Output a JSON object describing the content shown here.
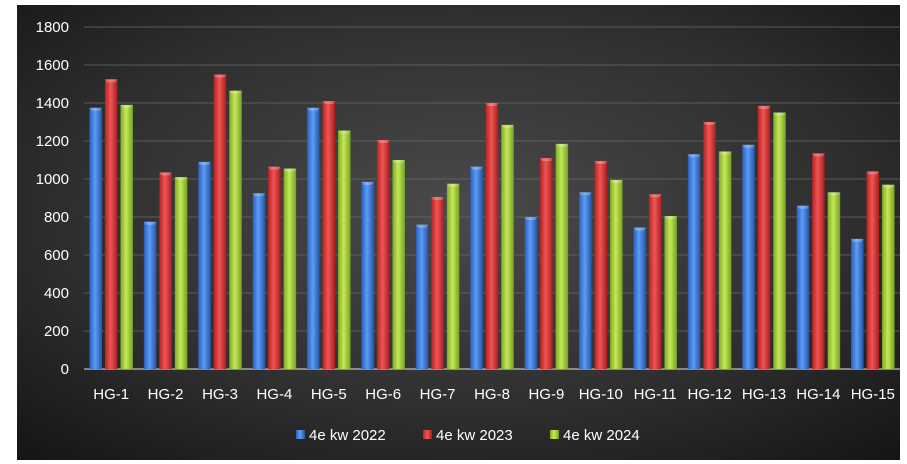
{
  "chart_data": {
    "type": "bar",
    "categories": [
      "HG-1",
      "HG-2",
      "HG-3",
      "HG-4",
      "HG-5",
      "HG-6",
      "HG-7",
      "HG-8",
      "HG-9",
      "HG-10",
      "HG-11",
      "HG-12",
      "HG-13",
      "HG-14",
      "HG-15"
    ],
    "series": [
      {
        "name": "4e kw 2022",
        "color": "#3C7DE0",
        "values": [
          1375,
          775,
          1090,
          925,
          1375,
          985,
          760,
          1065,
          800,
          930,
          745,
          1130,
          1180,
          860,
          685
        ]
      },
      {
        "name": "4e kw 2023",
        "color": "#E03B3B",
        "values": [
          1525,
          1035,
          1550,
          1065,
          1410,
          1205,
          905,
          1400,
          1110,
          1095,
          920,
          1300,
          1385,
          1135,
          1040
        ]
      },
      {
        "name": "4e kw 2024",
        "color": "#A6D43A",
        "values": [
          1390,
          1010,
          1465,
          1055,
          1255,
          1100,
          975,
          1285,
          1185,
          995,
          805,
          1145,
          1350,
          930,
          970
        ]
      }
    ],
    "title": "",
    "xlabel": "",
    "ylabel": "",
    "ylim": [
      0,
      1800
    ],
    "yticks": [
      0,
      200,
      400,
      600,
      800,
      1000,
      1200,
      1400,
      1600,
      1800
    ],
    "grid": true,
    "legend_position": "bottom",
    "background": "dark-radial-gradient"
  }
}
